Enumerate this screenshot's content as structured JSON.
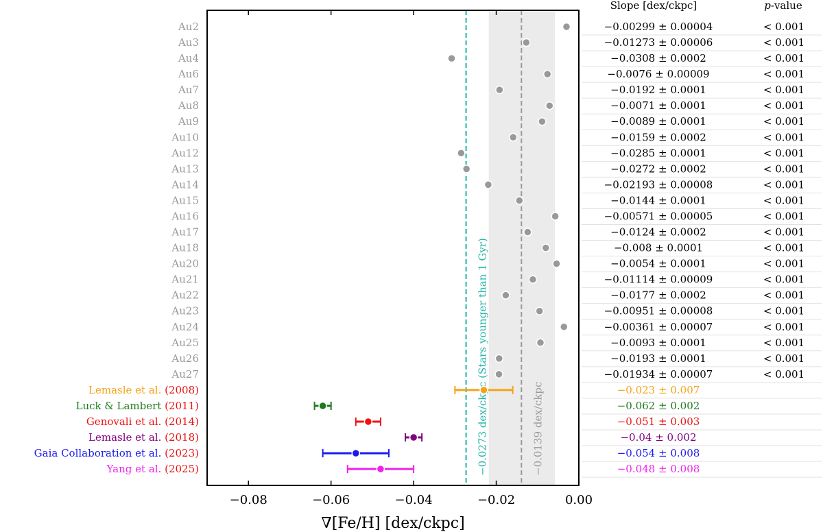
{
  "chart_data": {
    "type": "scatter",
    "xlabel": "∇[Fe/H] [dex/ckpc]",
    "xlim": [
      -0.09,
      0.0
    ],
    "xticks": [
      -0.08,
      -0.06,
      -0.04,
      -0.02,
      0.0
    ],
    "xtick_labels": [
      "−0.08",
      "−0.06",
      "−0.04",
      "−0.02",
      "0.00"
    ],
    "grid": false,
    "table_headers": {
      "slope": "Slope [dex/ckpc]",
      "pvalue_italic": "p",
      "pvalue_rest": "-value"
    },
    "reference_lines": [
      {
        "x": -0.0273,
        "label": "−0.0273 dex/ckpc (Stars younger than 1 Gyr)",
        "color": "#22b5a8",
        "style": "dashed"
      },
      {
        "x": -0.0139,
        "label": "−0.0139 dex/ckpc",
        "color": "#9a9a9a",
        "style": "dashed",
        "band": [
          -0.0218,
          -0.0058
        ],
        "band_color": "#ebebeb"
      }
    ],
    "simulations": [
      {
        "name": "Au2",
        "value": -0.00299,
        "slope_text": "−0.00299 ± 0.00004",
        "p_text": "< 0.001"
      },
      {
        "name": "Au3",
        "value": -0.01273,
        "slope_text": "−0.01273 ± 0.00006",
        "p_text": "< 0.001"
      },
      {
        "name": "Au4",
        "value": -0.0308,
        "slope_text": "−0.0308 ± 0.0002",
        "p_text": "< 0.001"
      },
      {
        "name": "Au6",
        "value": -0.0076,
        "slope_text": "−0.0076 ± 0.00009",
        "p_text": "< 0.001"
      },
      {
        "name": "Au7",
        "value": -0.0192,
        "slope_text": "−0.0192 ± 0.0001",
        "p_text": "< 0.001"
      },
      {
        "name": "Au8",
        "value": -0.0071,
        "slope_text": "−0.0071 ± 0.0001",
        "p_text": "< 0.001"
      },
      {
        "name": "Au9",
        "value": -0.0089,
        "slope_text": "−0.0089 ± 0.0001",
        "p_text": "< 0.001"
      },
      {
        "name": "Au10",
        "value": -0.0159,
        "slope_text": "−0.0159 ± 0.0002",
        "p_text": "< 0.001"
      },
      {
        "name": "Au12",
        "value": -0.0285,
        "slope_text": "−0.0285 ± 0.0001",
        "p_text": "< 0.001"
      },
      {
        "name": "Au13",
        "value": -0.0272,
        "slope_text": "−0.0272 ± 0.0002",
        "p_text": "< 0.001"
      },
      {
        "name": "Au14",
        "value": -0.02193,
        "slope_text": "−0.02193 ± 0.00008",
        "p_text": "< 0.001"
      },
      {
        "name": "Au15",
        "value": -0.0144,
        "slope_text": "−0.0144 ± 0.0001",
        "p_text": "< 0.001"
      },
      {
        "name": "Au16",
        "value": -0.00571,
        "slope_text": "−0.00571 ± 0.00005",
        "p_text": "< 0.001"
      },
      {
        "name": "Au17",
        "value": -0.0124,
        "slope_text": "−0.0124 ± 0.0002",
        "p_text": "< 0.001"
      },
      {
        "name": "Au18",
        "value": -0.008,
        "slope_text": "−0.008 ± 0.0001",
        "p_text": "< 0.001"
      },
      {
        "name": "Au20",
        "value": -0.0054,
        "slope_text": "−0.0054 ± 0.0001",
        "p_text": "< 0.001"
      },
      {
        "name": "Au21",
        "value": -0.01114,
        "slope_text": "−0.01114 ± 0.00009",
        "p_text": "< 0.001"
      },
      {
        "name": "Au22",
        "value": -0.0177,
        "slope_text": "−0.0177 ± 0.0002",
        "p_text": "< 0.001"
      },
      {
        "name": "Au23",
        "value": -0.00951,
        "slope_text": "−0.00951 ± 0.00008",
        "p_text": "< 0.001"
      },
      {
        "name": "Au24",
        "value": -0.00361,
        "slope_text": "−0.00361 ± 0.00007",
        "p_text": "< 0.001"
      },
      {
        "name": "Au25",
        "value": -0.0093,
        "slope_text": "−0.0093 ± 0.0001",
        "p_text": "< 0.001"
      },
      {
        "name": "Au26",
        "value": -0.0193,
        "slope_text": "−0.0193 ± 0.0001",
        "p_text": "< 0.001"
      },
      {
        "name": "Au27",
        "value": -0.01934,
        "slope_text": "−0.01934 ± 0.00007",
        "p_text": "< 0.001"
      }
    ],
    "observations": [
      {
        "name": "Lemasle et al.",
        "year": "(2008)",
        "value": -0.023,
        "error": 0.007,
        "slope_text": "−0.023 ± 0.007",
        "color": "#f5a316"
      },
      {
        "name": "Luck & Lambert",
        "year": "(2011)",
        "value": -0.062,
        "error": 0.002,
        "slope_text": "−0.062 ± 0.002",
        "color": "#1f7a1f"
      },
      {
        "name": "Genovali et al.",
        "year": "(2014)",
        "value": -0.051,
        "error": 0.003,
        "slope_text": "−0.051 ± 0.003",
        "color": "#ee1111"
      },
      {
        "name": "Lemasle et al.",
        "year": "(2018)",
        "value": -0.04,
        "error": 0.002,
        "slope_text": "−0.04 ± 0.002",
        "color": "#800080"
      },
      {
        "name": "Gaia Collaboration et al.",
        "year": "(2023)",
        "value": -0.054,
        "error": 0.008,
        "slope_text": "−0.054 ± 0.008",
        "color": "#1a1aee"
      },
      {
        "name": "Yang et al.",
        "year": "(2025)",
        "value": -0.048,
        "error": 0.008,
        "slope_text": "−0.048 ± 0.008",
        "color": "#ee22ee"
      }
    ],
    "colors": {
      "simulation_marker": "#999999",
      "simulation_label": "#9a9a9a",
      "row_separator": "#e2e2e2"
    }
  }
}
